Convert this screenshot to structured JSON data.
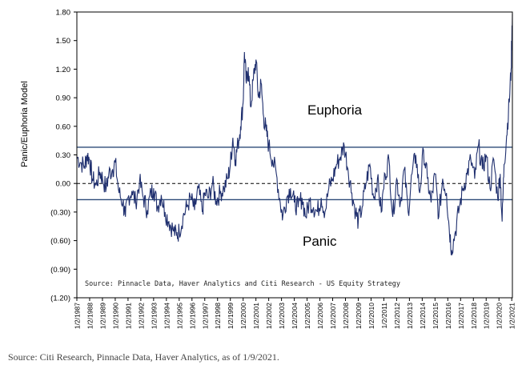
{
  "chart_data": {
    "type": "line",
    "ylabel": "Panic/Euphoria Model",
    "ylim": [
      -1.2,
      1.8
    ],
    "y_ticks": [
      1.8,
      1.5,
      1.2,
      0.9,
      0.6,
      0.3,
      0.0,
      -0.3,
      -0.6,
      -0.9,
      -1.2
    ],
    "y_tick_labels": [
      "1.80",
      "1.50",
      "1.20",
      "0.90",
      "0.60",
      "0.30",
      "0.00",
      "(0.30)",
      "(0.60)",
      "(0.90)",
      "(1.20)"
    ],
    "x_tick_labels": [
      "1/2/1987",
      "1/2/1988",
      "1/2/1989",
      "1/2/1990",
      "1/2/1991",
      "1/2/1992",
      "1/2/1993",
      "1/2/1994",
      "1/2/1995",
      "1/2/1996",
      "1/2/1997",
      "1/2/1998",
      "1/2/1999",
      "1/2/2000",
      "1/2/2001",
      "1/2/2002",
      "1/2/2003",
      "1/2/2004",
      "1/2/2005",
      "1/2/2006",
      "1/2/2007",
      "1/2/2008",
      "1/2/2009",
      "1/2/2010",
      "1/2/2011",
      "1/2/2012",
      "1/2/2013",
      "1/2/2014",
      "1/2/2015",
      "1/2/2016",
      "1/2/2017",
      "1/2/2018",
      "1/2/2019",
      "1/2/2020",
      "1/2/2021"
    ],
    "xlim": [
      1987.0,
      2021.05
    ],
    "reference_lines": [
      {
        "name": "Euphoria",
        "y": 0.38
      },
      {
        "name": "Panic",
        "y": -0.17
      }
    ],
    "zero_line": 0.0,
    "annotations": {
      "euphoria": "Euphoria",
      "panic": "Panic",
      "source_inside": "Source: Pinnacle Data, Haver Analytics and Citi Research - US Equity Strategy"
    },
    "series": [
      {
        "color": "#1f2f6e",
        "x": [
          1987.0,
          1987.3,
          1987.6,
          1987.8,
          1988.0,
          1988.2,
          1988.5,
          1988.8,
          1989.0,
          1989.3,
          1989.5,
          1989.8,
          1990.0,
          1990.3,
          1990.6,
          1990.8,
          1991.0,
          1991.3,
          1991.6,
          1991.9,
          1992.2,
          1992.5,
          1992.8,
          1993.0,
          1993.3,
          1993.6,
          1993.9,
          1994.2,
          1994.5,
          1994.8,
          1995.0,
          1995.3,
          1995.6,
          1995.9,
          1996.2,
          1996.5,
          1996.8,
          1997.0,
          1997.3,
          1997.6,
          1997.9,
          1998.2,
          1998.5,
          1998.8,
          1999.0,
          1999.2,
          1999.4,
          1999.6,
          1999.8,
          2000.0,
          2000.1,
          2000.25,
          2000.4,
          2000.6,
          2000.8,
          2001.0,
          2001.2,
          2001.4,
          2001.6,
          2001.8,
          2002.0,
          2002.3,
          2002.6,
          2002.9,
          2003.1,
          2003.4,
          2003.7,
          2004.0,
          2004.3,
          2004.6,
          2004.9,
          2005.2,
          2005.5,
          2005.8,
          2006.1,
          2006.4,
          2006.7,
          2007.0,
          2007.3,
          2007.6,
          2007.9,
          2008.2,
          2008.5,
          2008.8,
          2009.0,
          2009.3,
          2009.6,
          2009.9,
          2010.2,
          2010.5,
          2010.8,
          2011.1,
          2011.4,
          2011.7,
          2012.0,
          2012.3,
          2012.6,
          2012.9,
          2013.2,
          2013.5,
          2013.8,
          2014.1,
          2014.4,
          2014.7,
          2015.0,
          2015.3,
          2015.6,
          2015.9,
          2016.1,
          2016.3,
          2016.6,
          2016.9,
          2017.2,
          2017.5,
          2017.8,
          2018.1,
          2018.4,
          2018.7,
          2019.0,
          2019.3,
          2019.6,
          2019.9,
          2020.1,
          2020.25,
          2020.4,
          2020.6,
          2020.8,
          2020.95,
          2021.05
        ],
        "values": [
          0.28,
          0.22,
          0.18,
          0.3,
          0.25,
          0.05,
          -0.02,
          0.12,
          0.05,
          -0.05,
          0.1,
          0.15,
          0.22,
          -0.1,
          -0.2,
          -0.35,
          -0.15,
          -0.08,
          -0.2,
          0.02,
          -0.15,
          -0.28,
          -0.1,
          -0.05,
          -0.25,
          -0.12,
          -0.3,
          -0.4,
          -0.48,
          -0.55,
          -0.5,
          -0.35,
          -0.25,
          -0.15,
          -0.28,
          -0.05,
          -0.3,
          -0.1,
          -0.15,
          0.0,
          -0.18,
          -0.1,
          -0.05,
          0.05,
          0.2,
          0.48,
          0.25,
          0.42,
          0.6,
          0.85,
          1.38,
          1.05,
          1.22,
          0.8,
          1.1,
          1.3,
          0.9,
          1.05,
          0.7,
          0.55,
          0.4,
          0.25,
          0.1,
          -0.2,
          -0.35,
          -0.15,
          -0.05,
          -0.2,
          -0.25,
          -0.15,
          -0.35,
          -0.18,
          -0.25,
          -0.3,
          -0.15,
          -0.3,
          -0.05,
          0.05,
          0.2,
          0.28,
          0.4,
          0.15,
          -0.1,
          -0.3,
          -0.4,
          -0.25,
          0.0,
          0.2,
          -0.15,
          0.05,
          -0.3,
          0.1,
          0.25,
          -0.35,
          0.05,
          -0.2,
          0.15,
          -0.3,
          0.1,
          0.3,
          -0.1,
          0.35,
          0.05,
          -0.2,
          0.1,
          -0.35,
          0.05,
          -0.1,
          -0.45,
          -0.7,
          -0.5,
          -0.25,
          -0.05,
          0.1,
          0.25,
          0.05,
          0.4,
          0.15,
          0.3,
          -0.05,
          0.25,
          -0.15,
          0.1,
          -0.4,
          0.2,
          0.5,
          0.85,
          1.2,
          1.78
        ]
      }
    ]
  },
  "footer": "Source: Citi Research, Pinnacle Data, Haver Analytics, as of 1/9/2021."
}
